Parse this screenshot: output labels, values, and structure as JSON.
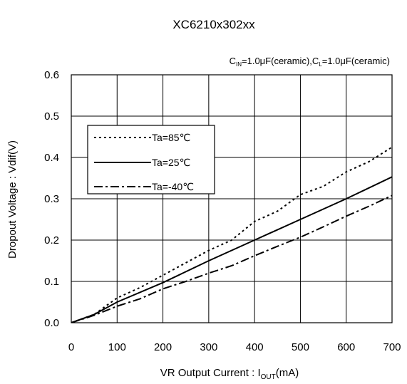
{
  "chart_data": {
    "type": "line",
    "title": "XC6210x302xx",
    "subtitle": {
      "cin_main": "C",
      "cin_sub": "IN",
      "cin_value": "=1.0μF(ceramic),",
      "cl_main": "C",
      "cl_sub": "L",
      "cl_value": "=1.0μF(ceramic)"
    },
    "xlabel": {
      "prefix": "VR Output Current : I",
      "sub": "OUT",
      "suffix": "(mA)"
    },
    "ylabel": "Dropout Voltage : Vdif(V)",
    "xlim": [
      0,
      700
    ],
    "ylim": [
      0,
      0.6
    ],
    "x_ticks": [
      0,
      100,
      200,
      300,
      400,
      500,
      600,
      700
    ],
    "y_ticks": [
      0.0,
      0.1,
      0.2,
      0.3,
      0.4,
      0.5,
      0.6
    ],
    "x_tick_labels": [
      "0",
      "100",
      "200",
      "300",
      "400",
      "500",
      "600",
      "700"
    ],
    "y_tick_labels": [
      "0.0",
      "0.1",
      "0.2",
      "0.3",
      "0.4",
      "0.5",
      "0.6"
    ],
    "grid": true,
    "legend_position": "upper-left",
    "series": [
      {
        "name": "Ta=85℃",
        "style": "dotted",
        "color": "#000000",
        "points": [
          [
            0,
            0
          ],
          [
            50,
            0.02
          ],
          [
            100,
            0.06
          ],
          [
            150,
            0.085
          ],
          [
            200,
            0.115
          ],
          [
            250,
            0.145
          ],
          [
            300,
            0.175
          ],
          [
            350,
            0.2
          ],
          [
            400,
            0.245
          ],
          [
            450,
            0.27
          ],
          [
            500,
            0.31
          ],
          [
            550,
            0.33
          ],
          [
            600,
            0.365
          ],
          [
            650,
            0.39
          ],
          [
            700,
            0.425
          ]
        ]
      },
      {
        "name": "Ta=25℃",
        "style": "solid",
        "color": "#000000",
        "points": [
          [
            0,
            0
          ],
          [
            50,
            0.02
          ],
          [
            100,
            0.05
          ],
          [
            200,
            0.097
          ],
          [
            300,
            0.15
          ],
          [
            400,
            0.2
          ],
          [
            500,
            0.25
          ],
          [
            600,
            0.3
          ],
          [
            700,
            0.353
          ]
        ]
      },
      {
        "name": "Ta=-40℃",
        "style": "dashdot",
        "color": "#000000",
        "points": [
          [
            0,
            0
          ],
          [
            50,
            0.018
          ],
          [
            100,
            0.04
          ],
          [
            150,
            0.058
          ],
          [
            200,
            0.082
          ],
          [
            250,
            0.1
          ],
          [
            300,
            0.12
          ],
          [
            350,
            0.138
          ],
          [
            400,
            0.162
          ],
          [
            450,
            0.185
          ],
          [
            500,
            0.207
          ],
          [
            550,
            0.232
          ],
          [
            600,
            0.258
          ],
          [
            650,
            0.282
          ],
          [
            700,
            0.308
          ]
        ]
      }
    ]
  }
}
